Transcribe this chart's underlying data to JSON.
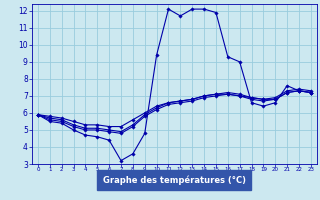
{
  "background_color": "#cce8f0",
  "grid_color": "#99ccdd",
  "line_color": "#0000aa",
  "xlabel": "Graphe des températures (°C)",
  "xlabel_bg": "#3355aa",
  "xlabel_fg": "#ffffff",
  "tick_color": "#0000aa",
  "xlim": [
    -0.5,
    23.5
  ],
  "ylim": [
    3,
    12.4
  ],
  "yticks": [
    3,
    4,
    5,
    6,
    7,
    8,
    9,
    10,
    11,
    12
  ],
  "xticks": [
    0,
    1,
    2,
    3,
    4,
    5,
    6,
    7,
    8,
    9,
    10,
    11,
    12,
    13,
    14,
    15,
    16,
    17,
    18,
    19,
    20,
    21,
    22,
    23
  ],
  "series": [
    {
      "x": [
        0,
        1,
        2,
        3,
        4,
        5,
        6,
        7,
        8,
        9,
        10,
        11,
        12,
        13,
        14,
        15,
        16,
        17,
        18,
        19,
        20,
        21,
        22,
        23
      ],
      "y": [
        5.9,
        5.5,
        5.4,
        5.0,
        4.7,
        4.6,
        4.4,
        3.2,
        3.6,
        4.8,
        9.4,
        12.1,
        11.7,
        12.1,
        12.1,
        11.9,
        9.3,
        9.0,
        6.6,
        6.4,
        6.6,
        7.6,
        7.3,
        7.2
      ]
    },
    {
      "x": [
        0,
        1,
        2,
        3,
        4,
        5,
        6,
        7,
        8,
        9,
        10,
        11,
        12,
        13,
        14,
        15,
        16,
        17,
        18,
        19,
        20,
        21,
        22,
        23
      ],
      "y": [
        5.9,
        5.6,
        5.5,
        5.2,
        5.0,
        5.0,
        4.9,
        4.8,
        5.2,
        5.8,
        6.2,
        6.5,
        6.6,
        6.7,
        6.9,
        7.0,
        7.1,
        7.0,
        6.8,
        6.7,
        6.8,
        7.2,
        7.3,
        7.2
      ]
    },
    {
      "x": [
        0,
        1,
        2,
        3,
        4,
        5,
        6,
        7,
        8,
        9,
        10,
        11,
        12,
        13,
        14,
        15,
        16,
        17,
        18,
        19,
        20,
        21,
        22,
        23
      ],
      "y": [
        5.9,
        5.7,
        5.6,
        5.3,
        5.1,
        5.1,
        5.0,
        4.9,
        5.3,
        5.9,
        6.3,
        6.6,
        6.7,
        6.8,
        7.0,
        7.1,
        7.2,
        7.1,
        6.9,
        6.8,
        6.9,
        7.3,
        7.4,
        7.3
      ]
    },
    {
      "x": [
        0,
        1,
        2,
        3,
        4,
        5,
        6,
        7,
        8,
        9,
        10,
        11,
        12,
        13,
        14,
        15,
        16,
        17,
        18,
        19,
        20,
        21,
        22,
        23
      ],
      "y": [
        5.9,
        5.8,
        5.7,
        5.5,
        5.3,
        5.3,
        5.2,
        5.2,
        5.6,
        6.0,
        6.4,
        6.6,
        6.7,
        6.8,
        7.0,
        7.1,
        7.1,
        7.0,
        6.9,
        6.8,
        6.8,
        7.2,
        7.3,
        7.2
      ]
    }
  ]
}
